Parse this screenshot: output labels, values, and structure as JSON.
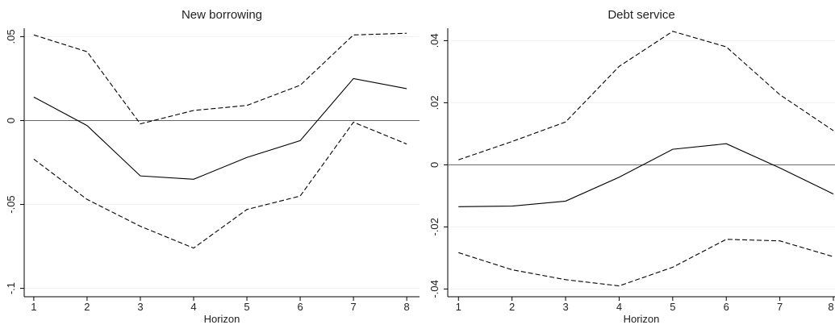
{
  "chart_data": [
    {
      "type": "line",
      "title": "New borrowing",
      "x_label": "Horizon",
      "x": [
        1,
        2,
        3,
        4,
        5,
        6,
        7,
        8
      ],
      "xlim": [
        0.82,
        8.24
      ],
      "xticks": [
        1,
        2,
        3,
        4,
        5,
        6,
        7,
        8
      ],
      "ylim": [
        -0.105,
        0.055
      ],
      "yticks": [
        {
          "value": -0.1,
          "label": "-.1"
        },
        {
          "value": -0.05,
          "label": "-.05"
        },
        0,
        {
          "value": 0.05,
          "label": ".05"
        }
      ],
      "grid": true,
      "reference_line": 0,
      "series": [
        {
          "color": "#000000",
          "style": "solid",
          "values": [
            0.014,
            -0.003,
            -0.033,
            -0.035,
            -0.022,
            -0.012,
            0.025,
            0.019
          ]
        },
        {
          "color": "#000000",
          "style": "dashed",
          "values": [
            0.051,
            0.041,
            -0.002,
            0.006,
            0.009,
            0.021,
            0.051,
            0.052
          ]
        },
        {
          "color": "#000000",
          "style": "dashed",
          "values": [
            -0.023,
            -0.047,
            -0.063,
            -0.076,
            -0.053,
            -0.045,
            -0.001,
            -0.014
          ]
        }
      ]
    },
    {
      "type": "line",
      "title": "Debt service",
      "x_label": "Horizon",
      "x": [
        1,
        2,
        3,
        4,
        5,
        6,
        7,
        8
      ],
      "xlim": [
        0.8,
        8.03
      ],
      "xticks": [
        1,
        2,
        3,
        4,
        5,
        6,
        7,
        8
      ],
      "ylim": [
        -0.0425,
        0.044
      ],
      "yticks": [
        {
          "value": -0.04,
          "label": "-.04"
        },
        {
          "value": -0.02,
          "label": "-.02"
        },
        0,
        {
          "value": 0.02,
          "label": ".02"
        },
        {
          "value": 0.04,
          "label": ".04"
        }
      ],
      "grid": true,
      "reference_line": 0,
      "series": [
        {
          "color": "#000000",
          "style": "solid",
          "values": [
            -0.0135,
            -0.0133,
            -0.0117,
            -0.004,
            0.005,
            0.0068,
            -0.001,
            -0.0094
          ]
        },
        {
          "color": "#000000",
          "style": "dashed",
          "values": [
            0.0016,
            0.0075,
            0.0138,
            0.0317,
            0.043,
            0.038,
            0.0226,
            0.011
          ]
        },
        {
          "color": "#000000",
          "style": "dashed",
          "values": [
            -0.0283,
            -0.0338,
            -0.037,
            -0.039,
            -0.033,
            -0.024,
            -0.0245,
            -0.0296
          ]
        }
      ]
    }
  ]
}
